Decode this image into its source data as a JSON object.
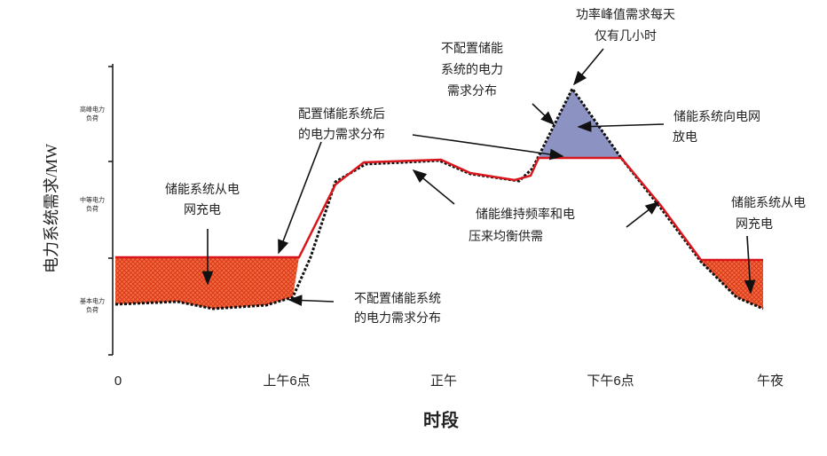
{
  "axis": {
    "y_label": "电力系统需求/MW",
    "x_label": "时段",
    "x_ticks": [
      "0",
      "上午6点",
      "正午",
      "下午6点",
      "午夜"
    ],
    "y_bands": [
      [
        "高峰电力",
        "负荷"
      ],
      [
        "中等电力",
        "负荷"
      ],
      [
        "基本电力",
        "负荷"
      ]
    ]
  },
  "annotations": [
    {
      "lines": [
        "功率峰值需求每天",
        "仅有几小时"
      ]
    },
    {
      "lines": [
        "不配置储能",
        "系统的电力",
        "需求分布"
      ]
    },
    {
      "lines": [
        "储能系统向电网",
        "放电"
      ]
    },
    {
      "lines": [
        "配置储能系统后",
        "的电力需求分布"
      ]
    },
    {
      "lines": [
        "储能系统从电",
        "网充电"
      ]
    },
    {
      "lines": [
        "储能维持频率和电",
        "压来均衡供需"
      ]
    },
    {
      "lines": [
        "不配置储能系统",
        "的电力需求分布"
      ]
    },
    {
      "lines": [
        "储能系统从电",
        "网充电"
      ]
    }
  ]
}
